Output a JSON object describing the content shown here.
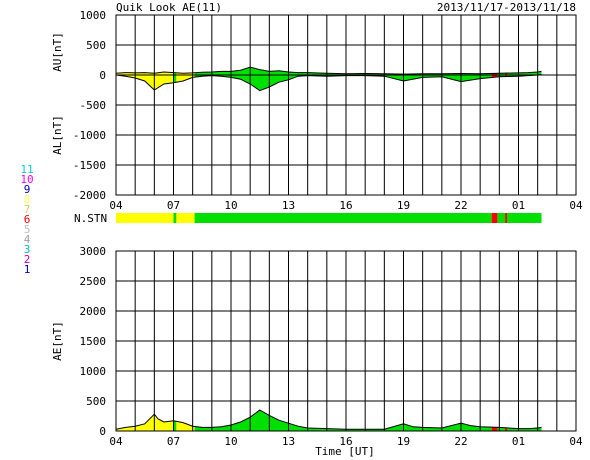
{
  "header": {
    "title": "Quik Look AE(11)",
    "date_range": "2013/11/17-2013/11/18"
  },
  "colors": {
    "yellow": "#ffff00",
    "green": "#00e000",
    "red": "#ff0000",
    "grid": "#000000"
  },
  "station_legend": {
    "items": [
      {
        "label": "11",
        "color": "#00d0d0"
      },
      {
        "label": "10",
        "color": "#ff00ff"
      },
      {
        "label": "9",
        "color": "#0000c0"
      },
      {
        "label": "8",
        "color": "#ffff60"
      },
      {
        "label": "7",
        "color": "#d0d060"
      },
      {
        "label": "6",
        "color": "#ff0000"
      },
      {
        "label": "5",
        "color": "#c0c0c0"
      },
      {
        "label": "4",
        "color": "#a0a0a0"
      },
      {
        "label": "3",
        "color": "#00c0c0"
      },
      {
        "label": "2",
        "color": "#c000c0"
      },
      {
        "label": "1",
        "color": "#0000c0"
      }
    ]
  },
  "stn_label": "N.STN",
  "chart_data": [
    {
      "type": "area",
      "ylabel_top": "AU[nT]",
      "ylabel_bottom": "AL[nT]",
      "ylim": [
        -2000,
        1000
      ],
      "yticks": [
        "1000",
        "500",
        "0",
        "-500",
        "-1000",
        "-1500",
        "-2000"
      ],
      "xlim": [
        4,
        28
      ],
      "xticks": [
        "04",
        "07",
        "10",
        "13",
        "16",
        "19",
        "22",
        "01",
        "04"
      ],
      "grid": true,
      "data_end_hour": 26.2,
      "au": {
        "x": [
          4,
          4.5,
          5,
          5.5,
          6,
          6.5,
          7,
          7.5,
          8,
          8.5,
          9,
          9.5,
          10,
          10.5,
          11,
          11.5,
          12,
          12.5,
          13,
          13.5,
          14,
          15,
          16,
          17,
          18,
          19,
          20,
          21,
          22,
          23,
          24,
          25,
          25.5,
          26,
          26.2
        ],
        "values": [
          30,
          40,
          35,
          40,
          30,
          50,
          40,
          30,
          35,
          45,
          50,
          60,
          60,
          80,
          130,
          90,
          60,
          70,
          50,
          40,
          40,
          30,
          20,
          25,
          20,
          15,
          20,
          20,
          25,
          20,
          30,
          35,
          40,
          50,
          60
        ]
      },
      "al": {
        "x": [
          4,
          4.5,
          5,
          5.5,
          6,
          6.5,
          7,
          7.5,
          8,
          8.5,
          9,
          9.5,
          10,
          10.5,
          11,
          11.5,
          12,
          12.5,
          13,
          13.5,
          14,
          15,
          16,
          17,
          18,
          19,
          20,
          21,
          22,
          23,
          24,
          25,
          25.5,
          26,
          26.2
        ],
        "values": [
          0,
          -20,
          -50,
          -100,
          -250,
          -150,
          -130,
          -100,
          -40,
          -20,
          -10,
          -20,
          -40,
          -70,
          -150,
          -260,
          -200,
          -120,
          -80,
          -20,
          -10,
          -20,
          -10,
          -10,
          -20,
          -100,
          -40,
          -30,
          -110,
          -60,
          -30,
          -20,
          -10,
          0,
          10
        ]
      }
    },
    {
      "type": "area",
      "ylabel": "AE[nT]",
      "xlabel": "Time [UT]",
      "ylim": [
        0,
        3000
      ],
      "yticks": [
        "3000",
        "2500",
        "2000",
        "1500",
        "1000",
        "500",
        "0"
      ],
      "xlim": [
        4,
        28
      ],
      "xticks": [
        "04",
        "07",
        "10",
        "13",
        "16",
        "19",
        "22",
        "01",
        "04"
      ],
      "grid": true,
      "data_end_hour": 26.2,
      "ae": {
        "x": [
          4,
          4.5,
          5,
          5.5,
          6,
          6.2,
          6.5,
          7,
          7.5,
          8,
          8.5,
          9,
          9.5,
          10,
          10.5,
          11,
          11.5,
          12,
          12.5,
          13,
          13.5,
          14,
          15,
          16,
          17,
          18,
          19,
          19.5,
          20,
          21,
          22,
          22.5,
          23,
          24,
          25,
          25.5,
          26,
          26.2
        ],
        "values": [
          30,
          60,
          80,
          120,
          280,
          200,
          150,
          170,
          140,
          80,
          60,
          60,
          70,
          100,
          150,
          230,
          350,
          260,
          180,
          130,
          80,
          50,
          40,
          30,
          30,
          30,
          120,
          70,
          60,
          50,
          130,
          90,
          70,
          60,
          40,
          40,
          50,
          60
        ]
      }
    }
  ],
  "stn_bar": {
    "segments": [
      {
        "start": 4,
        "end": 7.0,
        "color_key": "yellow"
      },
      {
        "start": 7.0,
        "end": 7.15,
        "color_key": "green"
      },
      {
        "start": 7.15,
        "end": 8.1,
        "color_key": "yellow"
      },
      {
        "start": 8.1,
        "end": 23.6,
        "color_key": "green"
      },
      {
        "start": 23.6,
        "end": 23.9,
        "color_key": "red"
      },
      {
        "start": 23.9,
        "end": 24.3,
        "color_key": "green"
      },
      {
        "start": 24.3,
        "end": 24.4,
        "color_key": "red"
      },
      {
        "start": 24.4,
        "end": 26.2,
        "color_key": "green"
      }
    ]
  }
}
